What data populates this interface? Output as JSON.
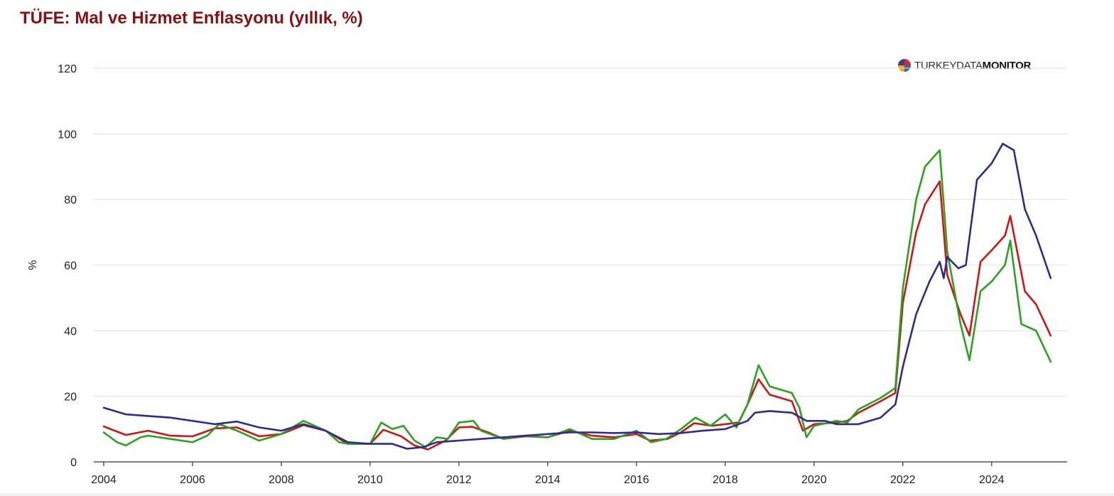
{
  "title": "TÜFE: Mal ve Hizmet Enflasyonu (yıllık, %)",
  "watermark": {
    "part1": "TURKEYDATA",
    "part2": "MONITOR"
  },
  "chart_data": {
    "type": "line",
    "title": "TÜFE: Mal ve Hizmet Enflasyonu (yıllık, %)",
    "ylabel": "%",
    "xlabel": "",
    "ylim": [
      0,
      120
    ],
    "xlim": [
      2004,
      2025.7
    ],
    "yticks": [
      0,
      20,
      40,
      60,
      80,
      100,
      120
    ],
    "xticks": [
      2004,
      2006,
      2008,
      2010,
      2012,
      2014,
      2016,
      2018,
      2020,
      2022,
      2024
    ],
    "grid": true,
    "legend": "none",
    "series": [
      {
        "color": "#d11515",
        "points": [
          [
            2004.0,
            10.8
          ],
          [
            2004.5,
            8.2
          ],
          [
            2005.0,
            9.5
          ],
          [
            2005.5,
            8.0
          ],
          [
            2006.0,
            7.8
          ],
          [
            2006.5,
            10.2
          ],
          [
            2007.0,
            10.5
          ],
          [
            2007.5,
            7.8
          ],
          [
            2008.0,
            8.5
          ],
          [
            2008.5,
            11.2
          ],
          [
            2009.0,
            9.5
          ],
          [
            2009.5,
            5.5
          ],
          [
            2010.0,
            5.5
          ],
          [
            2010.3,
            9.8
          ],
          [
            2010.7,
            7.8
          ],
          [
            2011.0,
            5.0
          ],
          [
            2011.3,
            3.8
          ],
          [
            2011.7,
            6.5
          ],
          [
            2012.0,
            10.5
          ],
          [
            2012.3,
            10.7
          ],
          [
            2012.7,
            8.8
          ],
          [
            2013.0,
            7.0
          ],
          [
            2013.5,
            7.8
          ],
          [
            2014.0,
            7.5
          ],
          [
            2014.5,
            9.5
          ],
          [
            2015.0,
            8.0
          ],
          [
            2015.5,
            7.5
          ],
          [
            2016.0,
            8.5
          ],
          [
            2016.3,
            6.5
          ],
          [
            2016.7,
            7.0
          ],
          [
            2017.0,
            9.0
          ],
          [
            2017.3,
            11.8
          ],
          [
            2017.7,
            11.0
          ],
          [
            2018.0,
            11.5
          ],
          [
            2018.3,
            12.0
          ],
          [
            2018.5,
            17.5
          ],
          [
            2018.75,
            25.2
          ],
          [
            2019.0,
            20.5
          ],
          [
            2019.5,
            18.5
          ],
          [
            2019.75,
            9.5
          ],
          [
            2020.0,
            11.5
          ],
          [
            2020.5,
            12.0
          ],
          [
            2020.75,
            12.5
          ],
          [
            2021.0,
            15.0
          ],
          [
            2021.5,
            18.5
          ],
          [
            2021.83,
            21.0
          ],
          [
            2022.0,
            48.5
          ],
          [
            2022.3,
            70.0
          ],
          [
            2022.5,
            78.5
          ],
          [
            2022.83,
            85.5
          ],
          [
            2023.0,
            57.0
          ],
          [
            2023.3,
            45.0
          ],
          [
            2023.5,
            38.5
          ],
          [
            2023.75,
            61.0
          ],
          [
            2024.0,
            64.5
          ],
          [
            2024.3,
            69.0
          ],
          [
            2024.42,
            75.0
          ],
          [
            2024.75,
            52.0
          ],
          [
            2025.0,
            48.0
          ],
          [
            2025.33,
            38.5
          ]
        ]
      },
      {
        "color": "#2aa31e",
        "points": [
          [
            2004.0,
            9.0
          ],
          [
            2004.3,
            6.0
          ],
          [
            2004.5,
            5.0
          ],
          [
            2004.83,
            7.5
          ],
          [
            2005.0,
            8.0
          ],
          [
            2005.5,
            7.0
          ],
          [
            2006.0,
            6.0
          ],
          [
            2006.33,
            8.0
          ],
          [
            2006.6,
            11.5
          ],
          [
            2007.0,
            9.5
          ],
          [
            2007.5,
            6.5
          ],
          [
            2008.0,
            8.5
          ],
          [
            2008.5,
            12.5
          ],
          [
            2009.0,
            9.5
          ],
          [
            2009.3,
            6.0
          ],
          [
            2009.5,
            5.5
          ],
          [
            2010.0,
            5.5
          ],
          [
            2010.25,
            12.0
          ],
          [
            2010.5,
            10.0
          ],
          [
            2010.75,
            11.0
          ],
          [
            2011.0,
            6.5
          ],
          [
            2011.25,
            4.5
          ],
          [
            2011.5,
            7.5
          ],
          [
            2011.75,
            7.0
          ],
          [
            2012.0,
            12.0
          ],
          [
            2012.33,
            12.5
          ],
          [
            2012.5,
            9.5
          ],
          [
            2013.0,
            7.0
          ],
          [
            2013.5,
            8.0
          ],
          [
            2014.0,
            7.5
          ],
          [
            2014.5,
            10.0
          ],
          [
            2015.0,
            7.0
          ],
          [
            2015.5,
            7.0
          ],
          [
            2016.0,
            9.5
          ],
          [
            2016.33,
            6.0
          ],
          [
            2016.67,
            7.0
          ],
          [
            2017.0,
            10.0
          ],
          [
            2017.33,
            13.5
          ],
          [
            2017.67,
            11.0
          ],
          [
            2018.0,
            14.5
          ],
          [
            2018.25,
            10.5
          ],
          [
            2018.5,
            17.5
          ],
          [
            2018.75,
            29.5
          ],
          [
            2019.0,
            23.0
          ],
          [
            2019.5,
            21.0
          ],
          [
            2019.67,
            16.5
          ],
          [
            2019.83,
            7.5
          ],
          [
            2020.0,
            11.0
          ],
          [
            2020.5,
            12.5
          ],
          [
            2020.75,
            12.0
          ],
          [
            2021.0,
            16.0
          ],
          [
            2021.5,
            19.5
          ],
          [
            2021.83,
            22.5
          ],
          [
            2022.0,
            53.0
          ],
          [
            2022.3,
            80.0
          ],
          [
            2022.5,
            90.0
          ],
          [
            2022.83,
            95.0
          ],
          [
            2023.0,
            64.0
          ],
          [
            2023.3,
            42.0
          ],
          [
            2023.5,
            31.0
          ],
          [
            2023.75,
            52.0
          ],
          [
            2024.0,
            55.0
          ],
          [
            2024.3,
            60.0
          ],
          [
            2024.42,
            67.5
          ],
          [
            2024.67,
            42.0
          ],
          [
            2025.0,
            40.0
          ],
          [
            2025.33,
            30.5
          ]
        ]
      },
      {
        "color": "#2e2b93",
        "points": [
          [
            2004.0,
            16.5
          ],
          [
            2004.5,
            14.5
          ],
          [
            2005.0,
            14.0
          ],
          [
            2005.5,
            13.5
          ],
          [
            2006.0,
            12.5
          ],
          [
            2006.5,
            11.5
          ],
          [
            2007.0,
            12.3
          ],
          [
            2007.5,
            10.5
          ],
          [
            2008.0,
            9.5
          ],
          [
            2008.5,
            11.5
          ],
          [
            2009.0,
            9.5
          ],
          [
            2009.5,
            6.0
          ],
          [
            2010.0,
            5.5
          ],
          [
            2010.5,
            5.5
          ],
          [
            2010.83,
            4.0
          ],
          [
            2011.2,
            4.5
          ],
          [
            2011.5,
            6.0
          ],
          [
            2012.0,
            6.5
          ],
          [
            2012.5,
            7.0
          ],
          [
            2013.0,
            7.5
          ],
          [
            2013.5,
            8.0
          ],
          [
            2014.0,
            8.5
          ],
          [
            2014.5,
            9.0
          ],
          [
            2015.0,
            9.0
          ],
          [
            2015.5,
            8.8
          ],
          [
            2016.0,
            9.0
          ],
          [
            2016.5,
            8.5
          ],
          [
            2017.0,
            8.8
          ],
          [
            2017.5,
            9.5
          ],
          [
            2018.0,
            10.0
          ],
          [
            2018.5,
            12.5
          ],
          [
            2018.67,
            15.0
          ],
          [
            2019.0,
            15.5
          ],
          [
            2019.5,
            15.0
          ],
          [
            2019.83,
            12.5
          ],
          [
            2020.25,
            12.5
          ],
          [
            2020.5,
            11.5
          ],
          [
            2021.0,
            11.5
          ],
          [
            2021.5,
            13.5
          ],
          [
            2021.83,
            17.5
          ],
          [
            2022.0,
            29.0
          ],
          [
            2022.3,
            45.0
          ],
          [
            2022.6,
            55.0
          ],
          [
            2022.83,
            61.0
          ],
          [
            2022.92,
            56.0
          ],
          [
            2023.0,
            62.5
          ],
          [
            2023.25,
            59.0
          ],
          [
            2023.42,
            60.0
          ],
          [
            2023.67,
            86.0
          ],
          [
            2024.0,
            91.0
          ],
          [
            2024.25,
            97.0
          ],
          [
            2024.5,
            95.0
          ],
          [
            2024.75,
            77.0
          ],
          [
            2025.0,
            69.0
          ],
          [
            2025.33,
            56.0
          ]
        ]
      }
    ]
  }
}
